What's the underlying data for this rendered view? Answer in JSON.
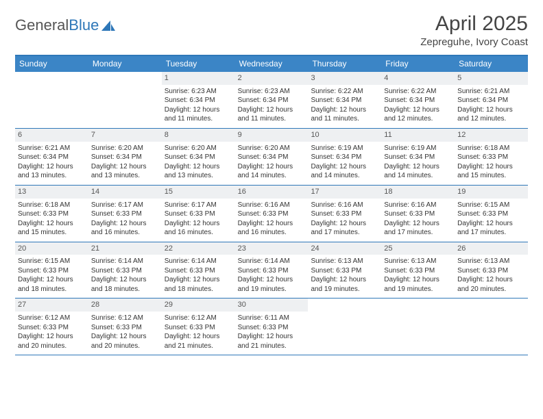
{
  "brand": {
    "part1": "General",
    "part2": "Blue"
  },
  "title": "April 2025",
  "location": "Zepreguhe, Ivory Coast",
  "colors": {
    "header_bar": "#3b85c6",
    "border": "#2e77b8",
    "daynum_bg": "#eef0f2",
    "text": "#333333",
    "page_bg": "#ffffff"
  },
  "dow": [
    "Sunday",
    "Monday",
    "Tuesday",
    "Wednesday",
    "Thursday",
    "Friday",
    "Saturday"
  ],
  "weeks": [
    [
      null,
      null,
      {
        "n": "1",
        "sr": "6:23 AM",
        "ss": "6:34 PM",
        "dl": "12 hours and 11 minutes."
      },
      {
        "n": "2",
        "sr": "6:23 AM",
        "ss": "6:34 PM",
        "dl": "12 hours and 11 minutes."
      },
      {
        "n": "3",
        "sr": "6:22 AM",
        "ss": "6:34 PM",
        "dl": "12 hours and 11 minutes."
      },
      {
        "n": "4",
        "sr": "6:22 AM",
        "ss": "6:34 PM",
        "dl": "12 hours and 12 minutes."
      },
      {
        "n": "5",
        "sr": "6:21 AM",
        "ss": "6:34 PM",
        "dl": "12 hours and 12 minutes."
      }
    ],
    [
      {
        "n": "6",
        "sr": "6:21 AM",
        "ss": "6:34 PM",
        "dl": "12 hours and 13 minutes."
      },
      {
        "n": "7",
        "sr": "6:20 AM",
        "ss": "6:34 PM",
        "dl": "12 hours and 13 minutes."
      },
      {
        "n": "8",
        "sr": "6:20 AM",
        "ss": "6:34 PM",
        "dl": "12 hours and 13 minutes."
      },
      {
        "n": "9",
        "sr": "6:20 AM",
        "ss": "6:34 PM",
        "dl": "12 hours and 14 minutes."
      },
      {
        "n": "10",
        "sr": "6:19 AM",
        "ss": "6:34 PM",
        "dl": "12 hours and 14 minutes."
      },
      {
        "n": "11",
        "sr": "6:19 AM",
        "ss": "6:34 PM",
        "dl": "12 hours and 14 minutes."
      },
      {
        "n": "12",
        "sr": "6:18 AM",
        "ss": "6:33 PM",
        "dl": "12 hours and 15 minutes."
      }
    ],
    [
      {
        "n": "13",
        "sr": "6:18 AM",
        "ss": "6:33 PM",
        "dl": "12 hours and 15 minutes."
      },
      {
        "n": "14",
        "sr": "6:17 AM",
        "ss": "6:33 PM",
        "dl": "12 hours and 16 minutes."
      },
      {
        "n": "15",
        "sr": "6:17 AM",
        "ss": "6:33 PM",
        "dl": "12 hours and 16 minutes."
      },
      {
        "n": "16",
        "sr": "6:16 AM",
        "ss": "6:33 PM",
        "dl": "12 hours and 16 minutes."
      },
      {
        "n": "17",
        "sr": "6:16 AM",
        "ss": "6:33 PM",
        "dl": "12 hours and 17 minutes."
      },
      {
        "n": "18",
        "sr": "6:16 AM",
        "ss": "6:33 PM",
        "dl": "12 hours and 17 minutes."
      },
      {
        "n": "19",
        "sr": "6:15 AM",
        "ss": "6:33 PM",
        "dl": "12 hours and 17 minutes."
      }
    ],
    [
      {
        "n": "20",
        "sr": "6:15 AM",
        "ss": "6:33 PM",
        "dl": "12 hours and 18 minutes."
      },
      {
        "n": "21",
        "sr": "6:14 AM",
        "ss": "6:33 PM",
        "dl": "12 hours and 18 minutes."
      },
      {
        "n": "22",
        "sr": "6:14 AM",
        "ss": "6:33 PM",
        "dl": "12 hours and 18 minutes."
      },
      {
        "n": "23",
        "sr": "6:14 AM",
        "ss": "6:33 PM",
        "dl": "12 hours and 19 minutes."
      },
      {
        "n": "24",
        "sr": "6:13 AM",
        "ss": "6:33 PM",
        "dl": "12 hours and 19 minutes."
      },
      {
        "n": "25",
        "sr": "6:13 AM",
        "ss": "6:33 PM",
        "dl": "12 hours and 19 minutes."
      },
      {
        "n": "26",
        "sr": "6:13 AM",
        "ss": "6:33 PM",
        "dl": "12 hours and 20 minutes."
      }
    ],
    [
      {
        "n": "27",
        "sr": "6:12 AM",
        "ss": "6:33 PM",
        "dl": "12 hours and 20 minutes."
      },
      {
        "n": "28",
        "sr": "6:12 AM",
        "ss": "6:33 PM",
        "dl": "12 hours and 20 minutes."
      },
      {
        "n": "29",
        "sr": "6:12 AM",
        "ss": "6:33 PM",
        "dl": "12 hours and 21 minutes."
      },
      {
        "n": "30",
        "sr": "6:11 AM",
        "ss": "6:33 PM",
        "dl": "12 hours and 21 minutes."
      },
      null,
      null,
      null
    ]
  ],
  "labels": {
    "sunrise": "Sunrise: ",
    "sunset": "Sunset: ",
    "daylight": "Daylight: "
  }
}
